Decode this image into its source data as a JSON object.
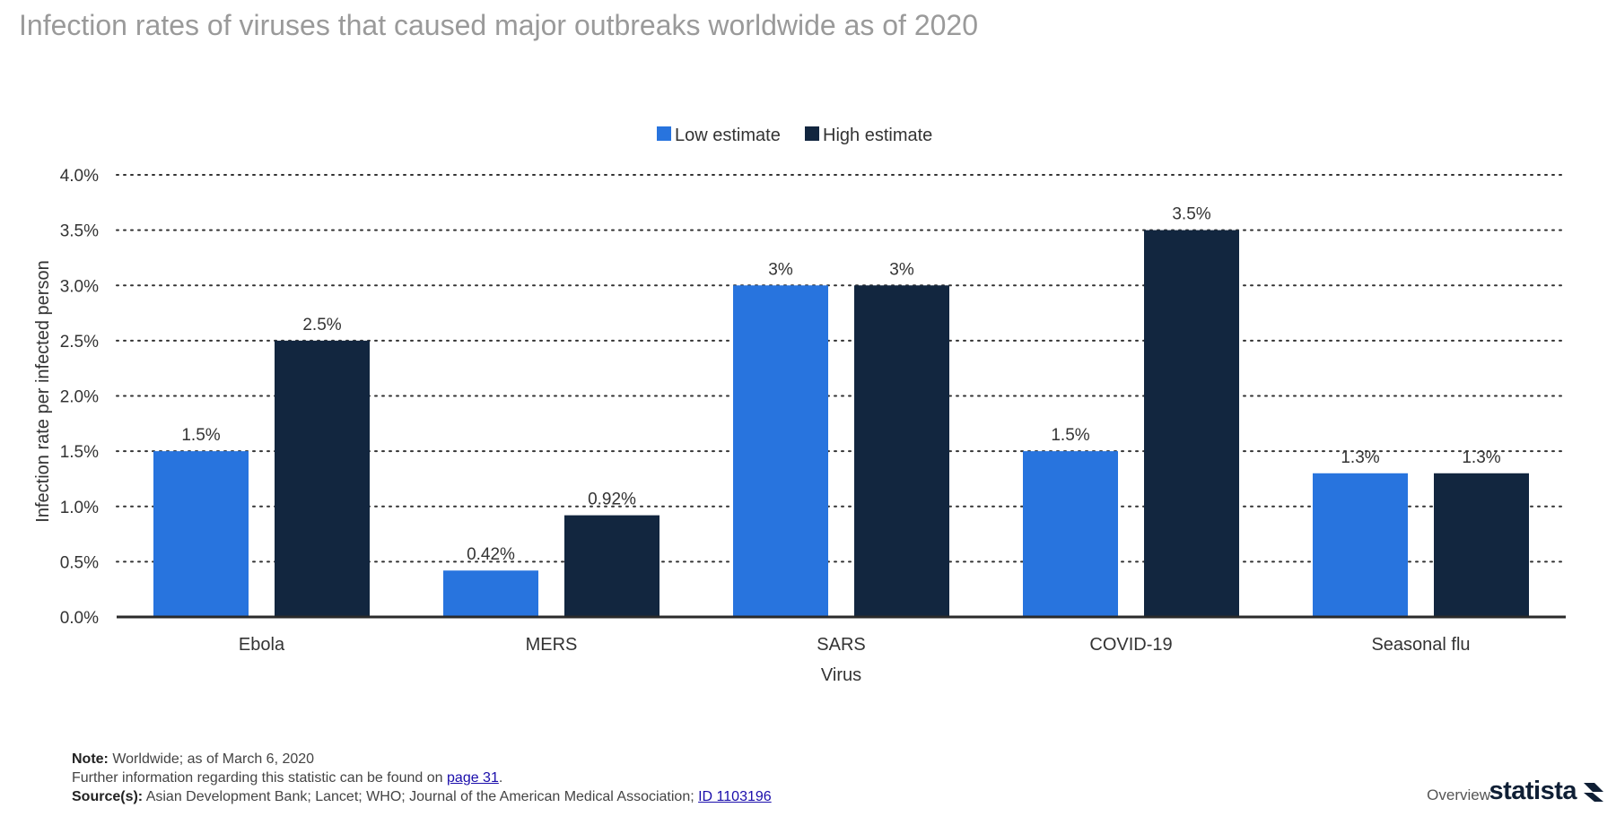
{
  "title": "Infection rates of viruses that caused major outbreaks worldwide as of 2020",
  "chart_data": {
    "type": "bar",
    "categories": [
      "Ebola",
      "MERS",
      "SARS",
      "COVID-19",
      "Seasonal flu"
    ],
    "series": [
      {
        "name": "Low estimate",
        "color": "#2874de",
        "values": [
          1.5,
          0.42,
          3,
          1.5,
          1.3
        ],
        "labels": [
          "1.5%",
          "0.42%",
          "3%",
          "1.5%",
          "1.3%"
        ]
      },
      {
        "name": "High estimate",
        "color": "#12263f",
        "values": [
          2.5,
          0.92,
          3,
          3.5,
          1.3
        ],
        "labels": [
          "2.5%",
          "0.92%",
          "3%",
          "3.5%",
          "1.3%"
        ]
      }
    ],
    "ylim": [
      0,
      4
    ],
    "yticks": [
      0,
      0.5,
      1,
      1.5,
      2,
      2.5,
      3,
      3.5,
      4
    ],
    "ytick_labels": [
      "0.0%",
      "0.5%",
      "1.0%",
      "1.5%",
      "2.0%",
      "2.5%",
      "3.0%",
      "3.5%",
      "4.0%"
    ],
    "xlabel": "Virus",
    "ylabel": "Infection rate per infected person",
    "grid": true,
    "legend_position": "top-center"
  },
  "footer": {
    "note_label": "Note:",
    "note_text": "Worldwide; as of March 6, 2020",
    "info_text": "Further information regarding this statistic can be found on",
    "info_link": "page 31",
    "info_end": ".",
    "source_label": "Source(s):",
    "source_text": "Asian Development Bank; Lancet; WHO; Journal of the American Medical Association;",
    "source_id": "ID 1103196"
  },
  "nav": {
    "overview_label": "Overview"
  },
  "brand": {
    "name": "statista",
    "color": "#0f1f35"
  }
}
